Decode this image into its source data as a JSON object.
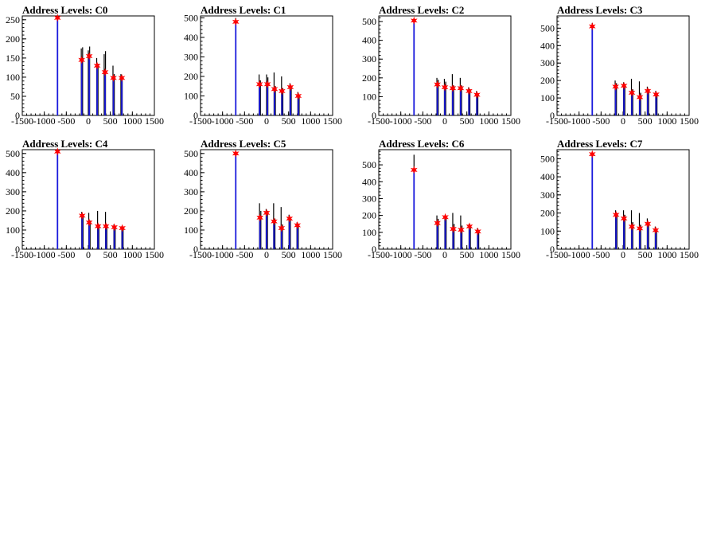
{
  "chart_data": [
    {
      "type": "bar",
      "title": "Address Levels: C0",
      "xlim": [
        -1500,
        1500
      ],
      "ylim": [
        0,
        260
      ],
      "xticks": [
        -1500,
        -1000,
        -500,
        0,
        500,
        1000,
        1500
      ],
      "yticks": [
        0,
        50,
        100,
        150,
        200,
        250
      ],
      "peaks": [
        {
          "x": -700,
          "y": 255
        },
        {
          "x": -150,
          "y": 145
        },
        {
          "x": 20,
          "y": 155
        },
        {
          "x": 200,
          "y": 130
        },
        {
          "x": 380,
          "y": 113
        },
        {
          "x": 570,
          "y": 98
        },
        {
          "x": 760,
          "y": 98
        }
      ],
      "histogram": [
        {
          "x": -700,
          "y": 255
        },
        {
          "x": -160,
          "y": 175
        },
        {
          "x": -130,
          "y": 178
        },
        {
          "x": 0,
          "y": 170
        },
        {
          "x": 30,
          "y": 180
        },
        {
          "x": 190,
          "y": 150
        },
        {
          "x": 220,
          "y": 135
        },
        {
          "x": 360,
          "y": 160
        },
        {
          "x": 390,
          "y": 168
        },
        {
          "x": 560,
          "y": 130
        },
        {
          "x": 590,
          "y": 108
        },
        {
          "x": 740,
          "y": 108
        },
        {
          "x": 770,
          "y": 100
        }
      ]
    },
    {
      "type": "bar",
      "title": "Address Levels: C1",
      "xlim": [
        -1500,
        1500
      ],
      "ylim": [
        0,
        510
      ],
      "xticks": [
        -1500,
        -1000,
        -500,
        0,
        500,
        1000,
        1500
      ],
      "yticks": [
        0,
        100,
        200,
        300,
        400,
        500
      ],
      "peaks": [
        {
          "x": -700,
          "y": 480
        },
        {
          "x": -160,
          "y": 160
        },
        {
          "x": 20,
          "y": 160
        },
        {
          "x": 180,
          "y": 135
        },
        {
          "x": 350,
          "y": 125
        },
        {
          "x": 540,
          "y": 145
        },
        {
          "x": 720,
          "y": 100
        }
      ],
      "histogram": [
        {
          "x": -700,
          "y": 500
        },
        {
          "x": -170,
          "y": 210
        },
        {
          "x": -140,
          "y": 180
        },
        {
          "x": 0,
          "y": 210
        },
        {
          "x": 30,
          "y": 195
        },
        {
          "x": 170,
          "y": 220
        },
        {
          "x": 200,
          "y": 150
        },
        {
          "x": 340,
          "y": 200
        },
        {
          "x": 370,
          "y": 140
        },
        {
          "x": 530,
          "y": 165
        },
        {
          "x": 560,
          "y": 150
        },
        {
          "x": 710,
          "y": 120
        },
        {
          "x": 740,
          "y": 105
        }
      ]
    },
    {
      "type": "bar",
      "title": "Address Levels: C2",
      "xlim": [
        -1500,
        1500
      ],
      "ylim": [
        0,
        530
      ],
      "xticks": [
        -1500,
        -1000,
        -500,
        0,
        500,
        1000,
        1500
      ],
      "yticks": [
        0,
        100,
        200,
        300,
        400,
        500
      ],
      "peaks": [
        {
          "x": -700,
          "y": 505
        },
        {
          "x": -170,
          "y": 165
        },
        {
          "x": 0,
          "y": 150
        },
        {
          "x": 180,
          "y": 145
        },
        {
          "x": 360,
          "y": 145
        },
        {
          "x": 550,
          "y": 130
        },
        {
          "x": 730,
          "y": 110
        }
      ],
      "histogram": [
        {
          "x": -700,
          "y": 510
        },
        {
          "x": -180,
          "y": 200
        },
        {
          "x": -150,
          "y": 190
        },
        {
          "x": -10,
          "y": 195
        },
        {
          "x": 20,
          "y": 180
        },
        {
          "x": 170,
          "y": 220
        },
        {
          "x": 200,
          "y": 160
        },
        {
          "x": 350,
          "y": 200
        },
        {
          "x": 380,
          "y": 160
        },
        {
          "x": 540,
          "y": 150
        },
        {
          "x": 570,
          "y": 140
        },
        {
          "x": 720,
          "y": 130
        },
        {
          "x": 750,
          "y": 115
        }
      ]
    },
    {
      "type": "bar",
      "title": "Address Levels: C3",
      "xlim": [
        -1500,
        1500
      ],
      "ylim": [
        0,
        570
      ],
      "xticks": [
        -1500,
        -1000,
        -500,
        0,
        500,
        1000,
        1500
      ],
      "yticks": [
        0,
        100,
        200,
        300,
        400,
        500
      ],
      "peaks": [
        {
          "x": -700,
          "y": 510
        },
        {
          "x": -170,
          "y": 165
        },
        {
          "x": 20,
          "y": 170
        },
        {
          "x": 200,
          "y": 130
        },
        {
          "x": 380,
          "y": 105
        },
        {
          "x": 560,
          "y": 140
        },
        {
          "x": 750,
          "y": 120
        }
      ],
      "histogram": [
        {
          "x": -700,
          "y": 530
        },
        {
          "x": -180,
          "y": 200
        },
        {
          "x": -150,
          "y": 185
        },
        {
          "x": 10,
          "y": 190
        },
        {
          "x": 40,
          "y": 180
        },
        {
          "x": 190,
          "y": 210
        },
        {
          "x": 220,
          "y": 150
        },
        {
          "x": 370,
          "y": 195
        },
        {
          "x": 400,
          "y": 130
        },
        {
          "x": 550,
          "y": 165
        },
        {
          "x": 580,
          "y": 150
        },
        {
          "x": 740,
          "y": 140
        },
        {
          "x": 770,
          "y": 125
        }
      ]
    },
    {
      "type": "bar",
      "title": "Address Levels: C4",
      "xlim": [
        -1500,
        1500
      ],
      "ylim": [
        0,
        520
      ],
      "xticks": [
        -1500,
        -1000,
        -500,
        0,
        500,
        1000,
        1500
      ],
      "yticks": [
        0,
        100,
        200,
        300,
        400,
        500
      ],
      "peaks": [
        {
          "x": -700,
          "y": 510
        },
        {
          "x": -140,
          "y": 175
        },
        {
          "x": 20,
          "y": 140
        },
        {
          "x": 220,
          "y": 120
        },
        {
          "x": 400,
          "y": 120
        },
        {
          "x": 590,
          "y": 115
        },
        {
          "x": 770,
          "y": 110
        }
      ],
      "histogram": [
        {
          "x": -700,
          "y": 510
        },
        {
          "x": -150,
          "y": 195
        },
        {
          "x": -120,
          "y": 180
        },
        {
          "x": 10,
          "y": 190
        },
        {
          "x": 40,
          "y": 150
        },
        {
          "x": 210,
          "y": 200
        },
        {
          "x": 240,
          "y": 130
        },
        {
          "x": 390,
          "y": 195
        },
        {
          "x": 420,
          "y": 130
        },
        {
          "x": 580,
          "y": 130
        },
        {
          "x": 610,
          "y": 120
        },
        {
          "x": 760,
          "y": 120
        },
        {
          "x": 790,
          "y": 112
        }
      ]
    },
    {
      "type": "bar",
      "title": "Address Levels: C5",
      "xlim": [
        -1500,
        1500
      ],
      "ylim": [
        0,
        520
      ],
      "xticks": [
        -1500,
        -1000,
        -500,
        0,
        500,
        1000,
        1500
      ],
      "yticks": [
        0,
        100,
        200,
        300,
        400,
        500
      ],
      "peaks": [
        {
          "x": -700,
          "y": 500
        },
        {
          "x": -150,
          "y": 165
        },
        {
          "x": 0,
          "y": 190
        },
        {
          "x": 170,
          "y": 145
        },
        {
          "x": 340,
          "y": 110
        },
        {
          "x": 520,
          "y": 160
        },
        {
          "x": 700,
          "y": 125
        }
      ],
      "histogram": [
        {
          "x": -700,
          "y": 505
        },
        {
          "x": -160,
          "y": 240
        },
        {
          "x": -130,
          "y": 200
        },
        {
          "x": -10,
          "y": 210
        },
        {
          "x": 20,
          "y": 200
        },
        {
          "x": 160,
          "y": 240
        },
        {
          "x": 190,
          "y": 160
        },
        {
          "x": 330,
          "y": 220
        },
        {
          "x": 360,
          "y": 130
        },
        {
          "x": 510,
          "y": 180
        },
        {
          "x": 540,
          "y": 165
        },
        {
          "x": 690,
          "y": 140
        },
        {
          "x": 720,
          "y": 128
        }
      ]
    },
    {
      "type": "bar",
      "title": "Address Levels: C6",
      "xlim": [
        -1500,
        1500
      ],
      "ylim": [
        0,
        590
      ],
      "xticks": [
        -1500,
        -1000,
        -500,
        0,
        500,
        1000,
        1500
      ],
      "yticks": [
        0,
        100,
        200,
        300,
        400,
        500
      ],
      "peaks": [
        {
          "x": -700,
          "y": 470
        },
        {
          "x": -170,
          "y": 155
        },
        {
          "x": 10,
          "y": 190
        },
        {
          "x": 190,
          "y": 120
        },
        {
          "x": 370,
          "y": 115
        },
        {
          "x": 560,
          "y": 135
        },
        {
          "x": 750,
          "y": 105
        }
      ],
      "histogram": [
        {
          "x": -700,
          "y": 560
        },
        {
          "x": -180,
          "y": 200
        },
        {
          "x": -150,
          "y": 180
        },
        {
          "x": 0,
          "y": 195
        },
        {
          "x": 30,
          "y": 190
        },
        {
          "x": 180,
          "y": 215
        },
        {
          "x": 210,
          "y": 150
        },
        {
          "x": 360,
          "y": 200
        },
        {
          "x": 390,
          "y": 140
        },
        {
          "x": 550,
          "y": 150
        },
        {
          "x": 580,
          "y": 140
        },
        {
          "x": 740,
          "y": 125
        },
        {
          "x": 770,
          "y": 110
        }
      ]
    },
    {
      "type": "bar",
      "title": "Address Levels: C7",
      "xlim": [
        -1500,
        1500
      ],
      "ylim": [
        0,
        550
      ],
      "xticks": [
        -1500,
        -1000,
        -500,
        0,
        500,
        1000,
        1500
      ],
      "yticks": [
        0,
        100,
        200,
        300,
        400,
        500
      ],
      "peaks": [
        {
          "x": -700,
          "y": 525
        },
        {
          "x": -160,
          "y": 190
        },
        {
          "x": 20,
          "y": 170
        },
        {
          "x": 200,
          "y": 125
        },
        {
          "x": 380,
          "y": 115
        },
        {
          "x": 560,
          "y": 140
        },
        {
          "x": 740,
          "y": 105
        }
      ],
      "histogram": [
        {
          "x": -700,
          "y": 530
        },
        {
          "x": -170,
          "y": 215
        },
        {
          "x": -140,
          "y": 200
        },
        {
          "x": 10,
          "y": 215
        },
        {
          "x": 40,
          "y": 190
        },
        {
          "x": 190,
          "y": 215
        },
        {
          "x": 220,
          "y": 150
        },
        {
          "x": 370,
          "y": 200
        },
        {
          "x": 400,
          "y": 135
        },
        {
          "x": 550,
          "y": 170
        },
        {
          "x": 580,
          "y": 145
        },
        {
          "x": 730,
          "y": 125
        },
        {
          "x": 760,
          "y": 110
        }
      ]
    }
  ],
  "colors": {
    "histogram_dark": "#000000",
    "histogram_fill": "#1a1adc",
    "marker": "#ff0000",
    "axis": "#000000"
  }
}
